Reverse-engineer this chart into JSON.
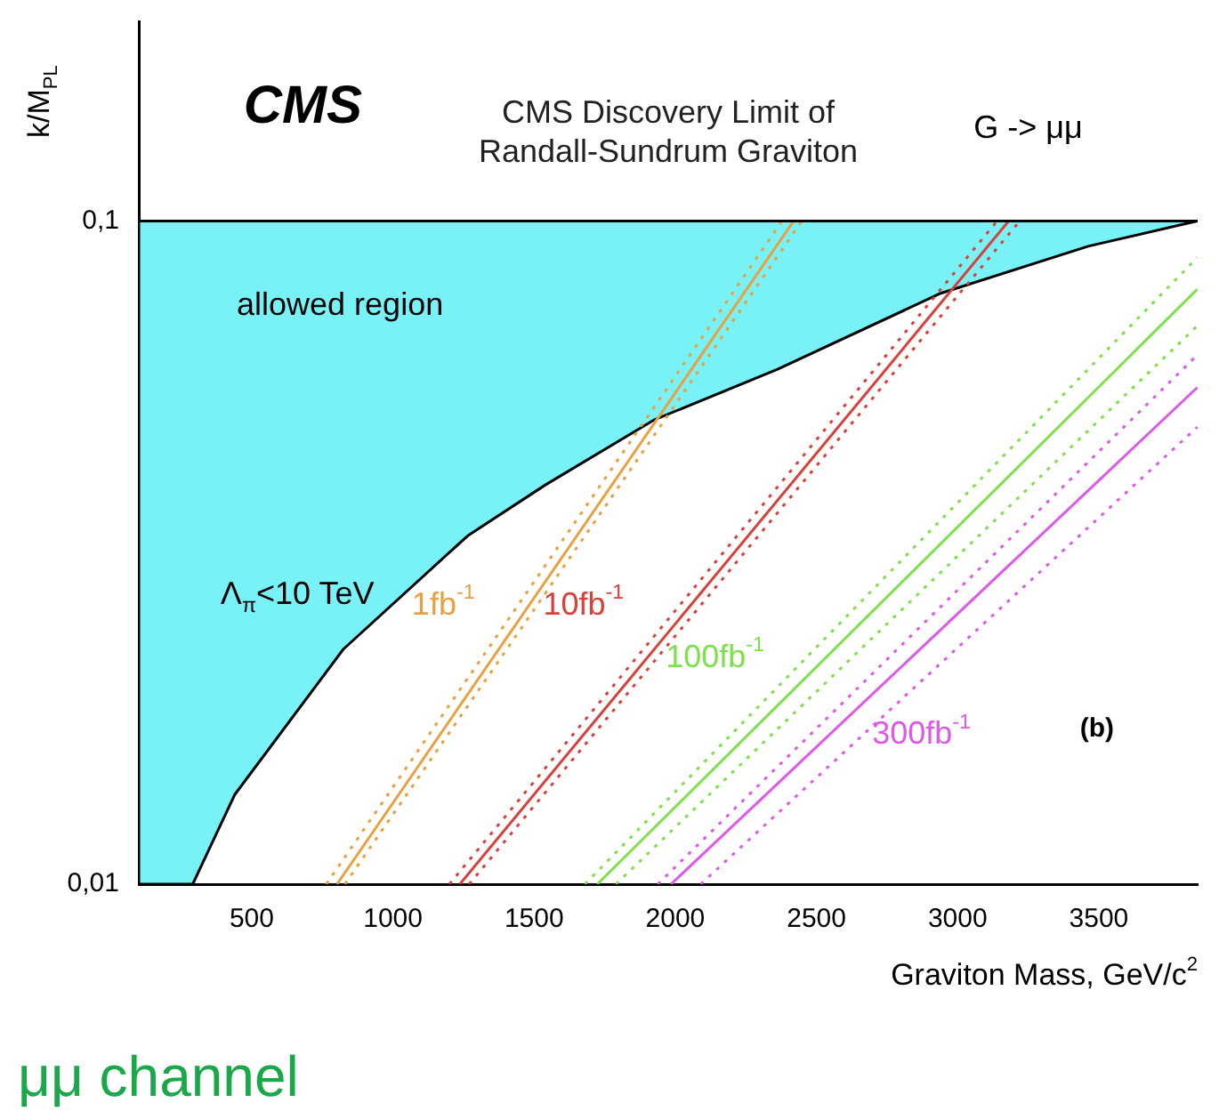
{
  "chart_data": {
    "type": "line",
    "title": "CMS Discovery Limit of\nRandall-Sundrum Graviton",
    "xlabel": "Graviton Mass, GeV/c$^{2}$",
    "ylabel": "k/M$_{PL}$",
    "log": "y",
    "xlim": [
      100,
      3850
    ],
    "ylim": [
      0.01,
      0.2
    ],
    "xticks": [
      500,
      1000,
      1500,
      2000,
      2500,
      3000,
      3500
    ],
    "yticks": [
      {
        "value": 0.01,
        "label": "0,01"
      },
      {
        "value": 0.1,
        "label": "0,1"
      }
    ],
    "grid": false,
    "legend": false,
    "marker": "none",
    "ref_lines": [
      {
        "axis": "y",
        "value": 0.1,
        "color": "#000000"
      }
    ],
    "annotations": [
      "CMS",
      "G -> μμ",
      "allowed region",
      "Λ$_{π}$<10 TeV",
      "(b)",
      "μμ channel"
    ],
    "series": [
      {
        "type": "area",
        "color": "#78f2f7",
        "x": [
          100,
          100,
          291,
          440,
          824,
          1264,
          1540,
          1924,
          2364,
          2940,
          3462,
          3849
        ],
        "values": [
          0.1,
          0.01,
          0.01,
          0.01365,
          0.0226,
          0.0335,
          0.04,
          0.0501,
          0.0598,
          0.0778,
          0.0916,
          0.1
        ]
      },
      {
        "name": "1fb$^{-1}$",
        "color": "#e8a040",
        "x": [
          802,
          2419
        ],
        "values": [
          0.01,
          0.1
        ],
        "line_style": "solid"
      },
      {
        "color": "#e8a040",
        "x": [
          764,
          2378
        ],
        "values": [
          0.01,
          0.1
        ],
        "line_style": "dotted"
      },
      {
        "color": "#e8a040",
        "x": [
          830,
          2448
        ],
        "values": [
          0.01,
          0.1
        ],
        "line_style": "dotted"
      },
      {
        "name": "10fb$^{-1}$",
        "color": "#d9403a",
        "x": [
          1237,
          3181
        ],
        "values": [
          0.01,
          0.1
        ],
        "line_style": "solid"
      },
      {
        "color": "#d9403a",
        "x": [
          1200,
          3140
        ],
        "values": [
          0.01,
          0.1
        ],
        "line_style": "dotted"
      },
      {
        "color": "#d9403a",
        "x": [
          1270,
          3220
        ],
        "values": [
          0.01,
          0.1
        ],
        "line_style": "dotted"
      },
      {
        "name": "100fb$^{-1}$",
        "color": "#7ee04a",
        "x": [
          1724,
          3849
        ],
        "values": [
          0.01,
          0.0789
        ],
        "line_style": "solid"
      },
      {
        "color": "#7ee04a",
        "x": [
          1680,
          3849
        ],
        "values": [
          0.01,
          0.0881
        ],
        "line_style": "dotted"
      },
      {
        "color": "#7ee04a",
        "x": [
          1790,
          3849
        ],
        "values": [
          0.01,
          0.0695
        ],
        "line_style": "dotted"
      },
      {
        "name": "300fb$^{-1}$",
        "color": "#dd5ae8",
        "x": [
          1985,
          3849
        ],
        "values": [
          0.01,
          0.0561
        ],
        "line_style": "solid"
      },
      {
        "color": "#dd5ae8",
        "x": [
          1938,
          3849
        ],
        "values": [
          0.01,
          0.0628
        ],
        "line_style": "dotted"
      },
      {
        "color": "#dd5ae8",
        "x": [
          2090,
          3849
        ],
        "values": [
          0.01,
          0.0489
        ],
        "line_style": "dotted"
      }
    ]
  }
}
